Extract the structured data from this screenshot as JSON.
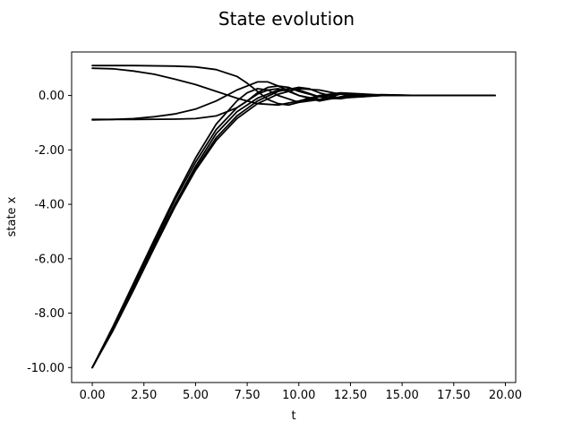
{
  "chart_data": {
    "type": "line",
    "title": "State evolution",
    "xlabel": "t",
    "ylabel": "state x",
    "xlim": [
      -1.0,
      20.5
    ],
    "ylim": [
      -10.55,
      1.6
    ],
    "xticks": [
      0,
      2.5,
      5,
      7.5,
      10,
      12.5,
      15,
      17.5,
      20
    ],
    "xtick_labels": [
      "0.00",
      "2.50",
      "5.00",
      "7.50",
      "10.00",
      "12.50",
      "15.00",
      "17.50",
      "20.00"
    ],
    "yticks": [
      -10,
      -8,
      -6,
      -4,
      -2,
      0
    ],
    "ytick_labels": [
      "-10.00",
      "-8.00",
      "-6.00",
      "-4.00",
      "-2.00",
      "0.00"
    ],
    "grid": false,
    "line_color": "#000000",
    "series": [
      {
        "x": [
          0,
          2,
          4,
          5,
          6,
          7,
          7.5,
          8,
          8.5,
          9,
          9.5,
          10,
          11,
          12,
          13,
          14,
          16,
          19.5
        ],
        "y": [
          1.1,
          1.1,
          1.08,
          1.05,
          0.95,
          0.7,
          0.45,
          0.15,
          -0.15,
          -0.3,
          -0.35,
          -0.25,
          -0.05,
          0.08,
          0.05,
          0.0,
          0.0,
          0.0
        ]
      },
      {
        "x": [
          0,
          1,
          2,
          3,
          4,
          5,
          6,
          7,
          8,
          9,
          10,
          11,
          12,
          13,
          14,
          16,
          19.5
        ],
        "y": [
          1.0,
          0.98,
          0.9,
          0.78,
          0.6,
          0.4,
          0.15,
          -0.1,
          -0.3,
          -0.35,
          -0.2,
          0.0,
          0.1,
          0.06,
          0.02,
          0.0,
          0.0
        ]
      },
      {
        "x": [
          0,
          2,
          4,
          5,
          6,
          7,
          7.5,
          8,
          8.5,
          9,
          9.5,
          10,
          11,
          12,
          13,
          14,
          16,
          19.5
        ],
        "y": [
          -0.88,
          -0.88,
          -0.87,
          -0.85,
          -0.75,
          -0.45,
          -0.2,
          0.1,
          0.3,
          0.35,
          0.3,
          0.15,
          -0.05,
          -0.08,
          -0.03,
          0.0,
          0.0,
          0.0
        ]
      },
      {
        "x": [
          0,
          1,
          2,
          3,
          4,
          5,
          6,
          7,
          8,
          8.5,
          9,
          10,
          11,
          12,
          13,
          14,
          16,
          19.5
        ],
        "y": [
          -0.9,
          -0.88,
          -0.85,
          -0.78,
          -0.68,
          -0.5,
          -0.2,
          0.2,
          0.5,
          0.5,
          0.35,
          0.0,
          -0.15,
          -0.1,
          -0.02,
          0.02,
          0.0,
          0.0
        ]
      },
      {
        "x": [
          0,
          1,
          2,
          3,
          4,
          5,
          6,
          7,
          7.5,
          8,
          8.5,
          9,
          10,
          11,
          12,
          13,
          14,
          16,
          19.5
        ],
        "y": [
          -10,
          -8.5,
          -6.9,
          -5.3,
          -3.75,
          -2.3,
          -1.05,
          -0.2,
          0.1,
          0.25,
          0.2,
          0.0,
          -0.25,
          -0.15,
          0.05,
          0.05,
          0.0,
          0.0,
          0.0
        ]
      },
      {
        "x": [
          0,
          1,
          2,
          3,
          4,
          5,
          6,
          7,
          8,
          8.5,
          9,
          9.5,
          10,
          11,
          12,
          13,
          14,
          16,
          19.5
        ],
        "y": [
          -10,
          -8.55,
          -7.0,
          -5.4,
          -3.85,
          -2.45,
          -1.25,
          -0.45,
          0.05,
          0.2,
          0.25,
          0.15,
          0.0,
          -0.2,
          -0.05,
          0.05,
          0.0,
          0.0,
          0.0
        ]
      },
      {
        "x": [
          0,
          1,
          2,
          3,
          4,
          5,
          6,
          7,
          8,
          9,
          9.5,
          10,
          11,
          12,
          13,
          14,
          16,
          19.5
        ],
        "y": [
          -10,
          -8.6,
          -7.05,
          -5.5,
          -4.0,
          -2.6,
          -1.4,
          -0.6,
          -0.1,
          0.2,
          0.25,
          0.2,
          -0.05,
          -0.12,
          0.0,
          0.03,
          0.0,
          0.0
        ]
      },
      {
        "x": [
          0,
          1,
          2,
          3,
          4,
          5,
          6,
          7,
          8,
          9,
          10,
          10.5,
          11,
          12,
          13,
          14,
          16,
          19.5
        ],
        "y": [
          -10,
          -8.62,
          -7.1,
          -5.55,
          -4.05,
          -2.7,
          -1.55,
          -0.75,
          -0.2,
          0.15,
          0.3,
          0.25,
          0.1,
          -0.1,
          -0.05,
          0.02,
          0.0,
          0.0
        ]
      },
      {
        "x": [
          0,
          1,
          2,
          3,
          4,
          5,
          6,
          7,
          8,
          9,
          10,
          11,
          12,
          13,
          14,
          16,
          19.5
        ],
        "y": [
          -10,
          -8.65,
          -7.15,
          -5.6,
          -4.1,
          -2.75,
          -1.65,
          -0.85,
          -0.3,
          0.05,
          0.25,
          0.2,
          0.05,
          -0.05,
          0.0,
          0.0,
          0.0
        ]
      }
    ]
  }
}
